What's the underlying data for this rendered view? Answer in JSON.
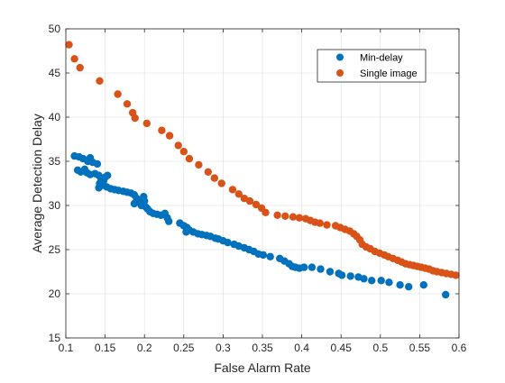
{
  "chart_data": {
    "type": "scatter",
    "title": "",
    "xlabel": "False Alarm Rate",
    "ylabel": "Average Detection Delay",
    "xlim": [
      0.1,
      0.6
    ],
    "ylim": [
      15,
      50
    ],
    "xticks": [
      0.1,
      0.15,
      0.2,
      0.25,
      0.3,
      0.35,
      0.4,
      0.45,
      0.5,
      0.55,
      0.6
    ],
    "xtick_labels": [
      "0.1",
      "0.15",
      "0.2",
      "0.25",
      "0.3",
      "0.35",
      "0.4",
      "0.45",
      "0.5",
      "0.55",
      "0.6"
    ],
    "yticks": [
      15,
      20,
      25,
      30,
      35,
      40,
      45,
      50
    ],
    "ytick_labels": [
      "15",
      "20",
      "25",
      "30",
      "35",
      "40",
      "45",
      "50"
    ],
    "grid": true,
    "legend_position": "top-right",
    "series": [
      {
        "name": "Min-delay",
        "color": "#0072BD",
        "points": [
          [
            0.111,
            35.6
          ],
          [
            0.117,
            35.5
          ],
          [
            0.122,
            35.3
          ],
          [
            0.128,
            35.0
          ],
          [
            0.131,
            35.4
          ],
          [
            0.134,
            34.9
          ],
          [
            0.14,
            34.7
          ],
          [
            0.115,
            34.0
          ],
          [
            0.119,
            33.8
          ],
          [
            0.124,
            34.1
          ],
          [
            0.127,
            33.7
          ],
          [
            0.131,
            33.5
          ],
          [
            0.137,
            33.6
          ],
          [
            0.142,
            33.4
          ],
          [
            0.145,
            33.0
          ],
          [
            0.148,
            32.8
          ],
          [
            0.15,
            33.2
          ],
          [
            0.153,
            33.4
          ],
          [
            0.143,
            32.5
          ],
          [
            0.142,
            32.0
          ],
          [
            0.147,
            32.3
          ],
          [
            0.152,
            32.1
          ],
          [
            0.157,
            31.9
          ],
          [
            0.162,
            31.8
          ],
          [
            0.167,
            31.7
          ],
          [
            0.173,
            31.6
          ],
          [
            0.178,
            31.5
          ],
          [
            0.183,
            31.4
          ],
          [
            0.187,
            31.2
          ],
          [
            0.19,
            30.8
          ],
          [
            0.193,
            30.4
          ],
          [
            0.187,
            30.2
          ],
          [
            0.196,
            30.0
          ],
          [
            0.199,
            31.0
          ],
          [
            0.2,
            30.5
          ],
          [
            0.202,
            29.8
          ],
          [
            0.204,
            29.6
          ],
          [
            0.207,
            29.3
          ],
          [
            0.211,
            29.1
          ],
          [
            0.216,
            29.0
          ],
          [
            0.221,
            28.9
          ],
          [
            0.226,
            29.1
          ],
          [
            0.229,
            28.6
          ],
          [
            0.231,
            28.2
          ],
          [
            0.245,
            28.0
          ],
          [
            0.25,
            27.7
          ],
          [
            0.254,
            27.5
          ],
          [
            0.257,
            27.2
          ],
          [
            0.253,
            27.0
          ],
          [
            0.262,
            27.0
          ],
          [
            0.268,
            26.8
          ],
          [
            0.273,
            26.7
          ],
          [
            0.279,
            26.6
          ],
          [
            0.284,
            26.5
          ],
          [
            0.29,
            26.3
          ],
          [
            0.294,
            26.2
          ],
          [
            0.3,
            26.0
          ],
          [
            0.306,
            25.8
          ],
          [
            0.314,
            25.6
          ],
          [
            0.32,
            25.4
          ],
          [
            0.327,
            25.2
          ],
          [
            0.333,
            25.0
          ],
          [
            0.339,
            24.8
          ],
          [
            0.345,
            24.5
          ],
          [
            0.351,
            24.4
          ],
          [
            0.36,
            24.2
          ],
          [
            0.372,
            24.0
          ],
          [
            0.378,
            23.7
          ],
          [
            0.384,
            23.4
          ],
          [
            0.388,
            23.1
          ],
          [
            0.392,
            23.0
          ],
          [
            0.397,
            22.9
          ],
          [
            0.403,
            23.0
          ],
          [
            0.413,
            23.0
          ],
          [
            0.424,
            22.8
          ],
          [
            0.436,
            22.5
          ],
          [
            0.447,
            22.3
          ],
          [
            0.451,
            22.1
          ],
          [
            0.462,
            22.0
          ],
          [
            0.472,
            21.9
          ],
          [
            0.479,
            21.7
          ],
          [
            0.489,
            21.5
          ],
          [
            0.501,
            21.5
          ],
          [
            0.511,
            21.3
          ],
          [
            0.525,
            21.0
          ],
          [
            0.536,
            20.8
          ],
          [
            0.555,
            21.0
          ],
          [
            0.583,
            19.9
          ]
        ]
      },
      {
        "name": "Single image",
        "color": "#D95319",
        "points": [
          [
            0.104,
            48.2
          ],
          [
            0.111,
            46.6
          ],
          [
            0.118,
            45.6
          ],
          [
            0.143,
            44.1
          ],
          [
            0.166,
            42.6
          ],
          [
            0.178,
            41.5
          ],
          [
            0.185,
            40.5
          ],
          [
            0.188,
            39.9
          ],
          [
            0.203,
            39.3
          ],
          [
            0.222,
            38.5
          ],
          [
            0.232,
            37.9
          ],
          [
            0.243,
            36.8
          ],
          [
            0.25,
            36.1
          ],
          [
            0.257,
            35.3
          ],
          [
            0.269,
            34.6
          ],
          [
            0.281,
            33.8
          ],
          [
            0.289,
            33.1
          ],
          [
            0.298,
            32.5
          ],
          [
            0.312,
            31.8
          ],
          [
            0.32,
            31.3
          ],
          [
            0.327,
            30.8
          ],
          [
            0.334,
            30.5
          ],
          [
            0.342,
            30.1
          ],
          [
            0.349,
            29.7
          ],
          [
            0.354,
            29.2
          ],
          [
            0.369,
            28.9
          ],
          [
            0.379,
            28.8
          ],
          [
            0.389,
            28.7
          ],
          [
            0.397,
            28.6
          ],
          [
            0.405,
            28.5
          ],
          [
            0.411,
            28.3
          ],
          [
            0.417,
            28.1
          ],
          [
            0.423,
            28.0
          ],
          [
            0.432,
            27.8
          ],
          [
            0.443,
            27.7
          ],
          [
            0.449,
            27.5
          ],
          [
            0.455,
            27.3
          ],
          [
            0.461,
            27.1
          ],
          [
            0.466,
            26.8
          ],
          [
            0.47,
            26.5
          ],
          [
            0.474,
            26.1
          ],
          [
            0.477,
            25.6
          ],
          [
            0.482,
            25.3
          ],
          [
            0.487,
            25.1
          ],
          [
            0.493,
            24.8
          ],
          [
            0.499,
            24.6
          ],
          [
            0.505,
            24.4
          ],
          [
            0.51,
            24.2
          ],
          [
            0.516,
            24.0
          ],
          [
            0.522,
            23.8
          ],
          [
            0.527,
            23.6
          ],
          [
            0.532,
            23.4
          ],
          [
            0.537,
            23.3
          ],
          [
            0.542,
            23.2
          ],
          [
            0.547,
            23.1
          ],
          [
            0.552,
            23.0
          ],
          [
            0.557,
            22.9
          ],
          [
            0.562,
            22.8
          ],
          [
            0.567,
            22.6
          ],
          [
            0.572,
            22.5
          ],
          [
            0.578,
            22.4
          ],
          [
            0.584,
            22.3
          ],
          [
            0.59,
            22.2
          ],
          [
            0.596,
            22.1
          ]
        ]
      }
    ]
  }
}
